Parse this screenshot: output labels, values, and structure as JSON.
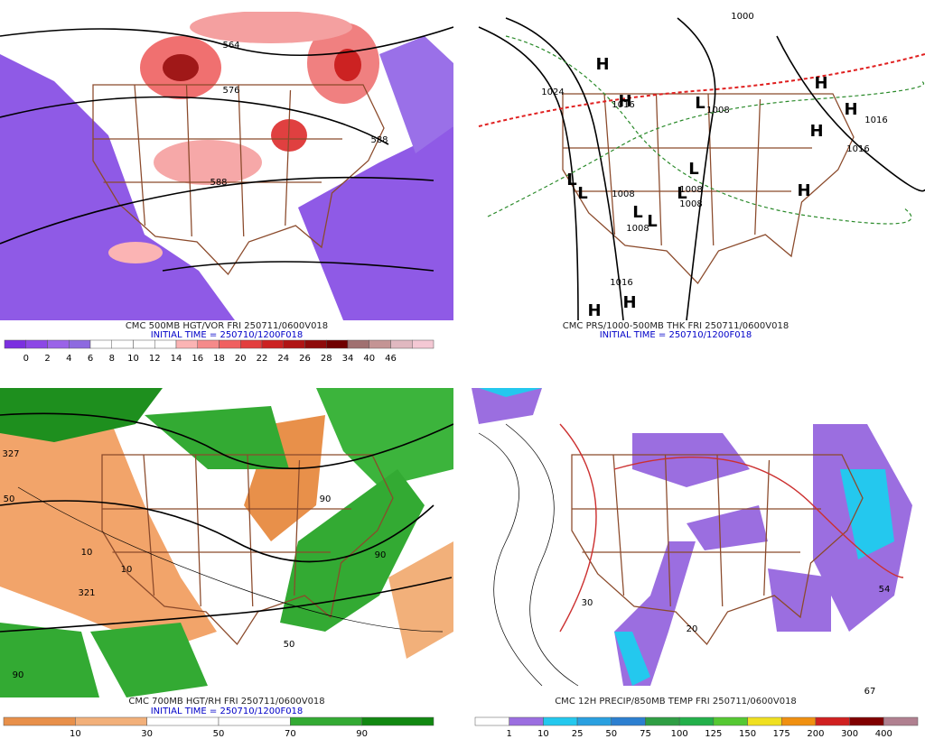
{
  "panels": [
    {
      "caption": "CMC 500MB HGT/VOR FRI 250711/0600V018",
      "initial_time": "INITIAL TIME = 250710/1200F018",
      "colorbar": {
        "labels": [
          "0",
          "2",
          "4",
          "6",
          "8",
          "10",
          "12",
          "14",
          "16",
          "18",
          "20",
          "22",
          "24",
          "26",
          "28",
          "34",
          "40",
          "46"
        ],
        "colors": [
          "#7b2fe0",
          "#8c47e6",
          "#9a63e8",
          "#8d6ae0",
          "#ffffff",
          "#ffffff",
          "#ffffff",
          "#ffffff",
          "#fbb4b4",
          "#f58a8a",
          "#f06060",
          "#e33d3d",
          "#cc2222",
          "#b01414",
          "#8e0a0a",
          "#700000",
          "#a07070",
          "#c49494",
          "#e0b8c0",
          "#f4c8d4"
        ]
      },
      "map_labels": [
        "564",
        "576",
        "588",
        "588"
      ]
    },
    {
      "caption": "CMC PRS/1000-500MB THK FRI 250711/0600V018",
      "initial_time": "INITIAL TIME = 250710/1200F018",
      "map_labels": [
        "H",
        "H",
        "H",
        "H",
        "H",
        "H",
        "H",
        "H",
        "L",
        "L",
        "L",
        "L",
        "L",
        "L",
        "L",
        "1000",
        "1016",
        "1008",
        "1016",
        "1016",
        "1008",
        "1008",
        "1008",
        "1008",
        "1016",
        "1024"
      ]
    },
    {
      "caption": "CMC 700MB HGT/RH FRI 250711/0600V018",
      "initial_time": "INITIAL TIME = 250710/1200F018",
      "colorbar": {
        "labels": [
          "10",
          "30",
          "50",
          "70",
          "90"
        ],
        "colors": [
          "#e8904a",
          "#f2b07a",
          "#ffffff",
          "#ffffff",
          "#33aa33",
          "#118811"
        ]
      },
      "map_labels": [
        "327",
        "50",
        "10",
        "10",
        "321",
        "50",
        "90",
        "90",
        "90"
      ]
    },
    {
      "caption": "CMC 12H PRECIP/850MB TEMP FRI 250711/0600V018",
      "colorbar": {
        "labels": [
          "1",
          "10",
          "25",
          "50",
          "75",
          "100",
          "125",
          "150",
          "175",
          "200",
          "300",
          "400"
        ],
        "colors": [
          "#ffffff",
          "#9b6ee0",
          "#24c8ee",
          "#2aa0e0",
          "#2c7fd0",
          "#2f9e44",
          "#23b04a",
          "#55c832",
          "#f0e020",
          "#f09010",
          "#d02020",
          "#800000",
          "#b08090"
        ]
      },
      "map_labels": [
        "54",
        "67",
        "30",
        "20"
      ]
    }
  ]
}
